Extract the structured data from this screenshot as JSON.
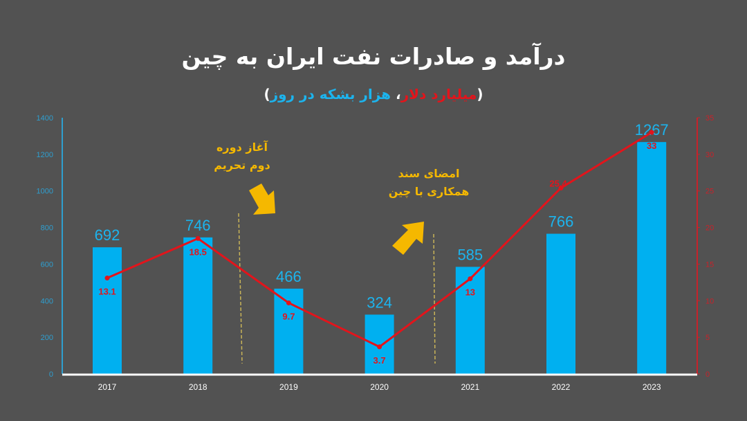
{
  "title": "درآمد و صادرات نفت ایران به چین",
  "subtitle": {
    "open": "(",
    "revenue_unit": "میلیارد دلار",
    "separator": "، ",
    "volume_unit": "هزار بشکه در روز",
    "close": ")"
  },
  "annotations": [
    {
      "line1": "آغاز دوره",
      "line2": "دوم تحریم",
      "arrow": "arrow-down-right"
    },
    {
      "line1": "امضای سند",
      "line2": "همکاری با چین",
      "arrow": "arrow-up-right"
    }
  ],
  "colors": {
    "background": "#525252",
    "bars": "#00b0f0",
    "bar_labels": "#1cb4ee",
    "line": "#e3141b",
    "line_labels": "#e3141b",
    "annotation": "#f5b800",
    "left_axis": "#2e9fd0",
    "right_axis": "#c8222a"
  },
  "chart_data": {
    "type": "bar+line",
    "title": "درآمد و صادرات نفت ایران به چین",
    "subtitle": "(میلیارد دلار، هزار بشکه در روز)",
    "categories": [
      "2017",
      "2018",
      "2019",
      "2020",
      "2021",
      "2022",
      "2023"
    ],
    "series": [
      {
        "name": "هزار بشکه در روز",
        "type": "bar",
        "axis": "left",
        "values": [
          692,
          746,
          466,
          324,
          585,
          766,
          1267
        ]
      },
      {
        "name": "میلیارد دلار",
        "type": "line",
        "axis": "right",
        "values": [
          13.1,
          18.5,
          9.7,
          3.7,
          13,
          25.4,
          33
        ]
      }
    ],
    "left_axis": {
      "min": 0,
      "max": 1400,
      "ticks": [
        0,
        200,
        400,
        600,
        800,
        1000,
        1200,
        1400
      ]
    },
    "right_axis": {
      "min": 0,
      "max": 35,
      "ticks": [
        0,
        5,
        10,
        15,
        20,
        25,
        30,
        35
      ]
    },
    "grid": false,
    "legend": "none",
    "annotations": [
      {
        "text": "آغاز دوره دوم تحریم",
        "between": [
          "2018",
          "2019"
        ]
      },
      {
        "text": "امضای سند همکاری با چین",
        "between": [
          "2020",
          "2021"
        ]
      }
    ]
  }
}
